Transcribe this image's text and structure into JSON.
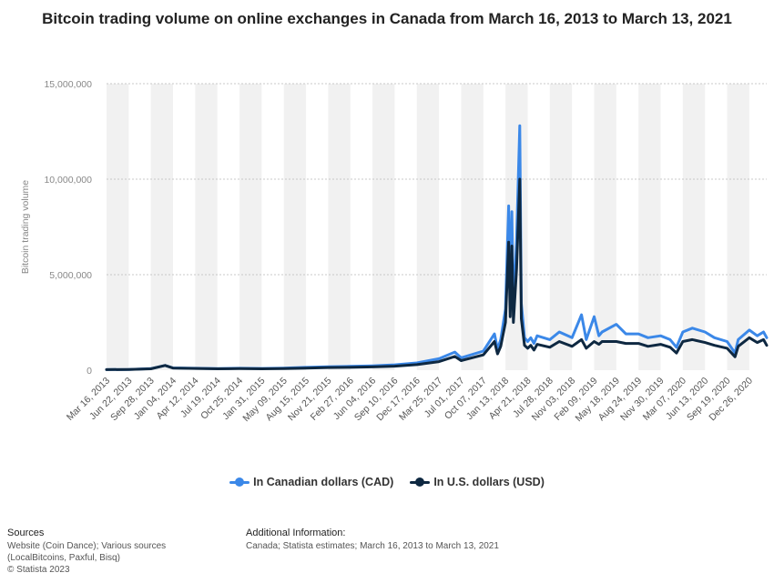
{
  "chart_data": {
    "type": "line",
    "title": "Bitcoin trading volume on online exchanges in Canada from March 16, 2013 to March 13, 2021",
    "xlabel": "",
    "ylabel": "Bitcoin trading volume",
    "ylim": [
      0,
      15000000
    ],
    "yticks": [
      "0",
      "5,000,000",
      "10,000,000",
      "15,000,000"
    ],
    "ytick_values": [
      0,
      5000000,
      10000000,
      15000000
    ],
    "grid": true,
    "legend_position": "bottom",
    "xticks": [
      "Mar 16, 2013",
      "Jun 22, 2013",
      "Sep 28, 2013",
      "Jan 04, 2014",
      "Apr 12, 2014",
      "Jul 19, 2014",
      "Oct 25, 2014",
      "Jan 31, 2015",
      "May 09, 2015",
      "Aug 15, 2015",
      "Nov 21, 2015",
      "Feb 27, 2016",
      "Jun 04, 2016",
      "Sep 10, 2016",
      "Dec 17, 2016",
      "Mar 25, 2017",
      "Jul 01, 2017",
      "Oct 07, 2017",
      "Jan 13, 2018",
      "Apr 21, 2018",
      "Jul 28, 2018",
      "Nov 03, 2018",
      "Feb 09, 2019",
      "May 18, 2019",
      "Aug 24, 2019",
      "Nov 30, 2019",
      "Mar 07, 2020",
      "Jun 13, 2020",
      "Sep 19, 2020",
      "Dec 26, 2020"
    ],
    "x": [
      "Mar 16, 2013",
      "Jun 22, 2013",
      "Sep 28, 2013",
      "Nov 30, 2013",
      "Jan 04, 2014",
      "Apr 12, 2014",
      "Jul 19, 2014",
      "Oct 25, 2014",
      "Jan 31, 2015",
      "May 09, 2015",
      "Aug 15, 2015",
      "Nov 21, 2015",
      "Feb 27, 2016",
      "Jun 04, 2016",
      "Sep 10, 2016",
      "Dec 17, 2016",
      "Mar 25, 2017",
      "Jun 03, 2017",
      "Jul 01, 2017",
      "Oct 07, 2017",
      "Nov 25, 2017",
      "Dec 09, 2017",
      "Dec 23, 2017",
      "Jan 13, 2018",
      "Jan 27, 2018",
      "Feb 03, 2018",
      "Feb 10, 2018",
      "Feb 17, 2018",
      "Mar 03, 2018",
      "Mar 17, 2018",
      "Mar 24, 2018",
      "Apr 07, 2018",
      "Apr 21, 2018",
      "May 05, 2018",
      "May 19, 2018",
      "Jun 02, 2018",
      "Jul 28, 2018",
      "Sep 08, 2018",
      "Nov 03, 2018",
      "Dec 15, 2018",
      "Jan 05, 2019",
      "Feb 09, 2019",
      "Mar 02, 2019",
      "Mar 16, 2019",
      "May 18, 2019",
      "Jun 29, 2019",
      "Aug 24, 2019",
      "Oct 05, 2019",
      "Nov 30, 2019",
      "Jan 11, 2020",
      "Feb 08, 2020",
      "Mar 07, 2020",
      "Apr 18, 2020",
      "Jun 13, 2020",
      "Jul 25, 2020",
      "Sep 19, 2020",
      "Oct 24, 2020",
      "Nov 07, 2020",
      "Dec 26, 2020",
      "Jan 30, 2021",
      "Feb 27, 2021",
      "Mar 13, 2021"
    ],
    "series": [
      {
        "name": "In Canadian dollars (CAD)",
        "color": "#3b88e8",
        "values": [
          30000,
          40000,
          80000,
          250000,
          120000,
          100000,
          80000,
          100000,
          90000,
          110000,
          150000,
          180000,
          200000,
          230000,
          280000,
          380000,
          600000,
          950000,
          650000,
          1000000,
          1900000,
          1100000,
          1600000,
          3200000,
          8600000,
          3600000,
          8300000,
          3200000,
          6800000,
          12800000,
          3500000,
          1700000,
          1500000,
          1700000,
          1400000,
          1800000,
          1600000,
          2000000,
          1700000,
          2900000,
          1600000,
          2800000,
          1800000,
          2000000,
          2400000,
          1900000,
          1900000,
          1700000,
          1800000,
          1600000,
          1200000,
          2000000,
          2200000,
          2000000,
          1700000,
          1500000,
          900000,
          1600000,
          2100000,
          1800000,
          2000000,
          1700000
        ]
      },
      {
        "name": "In U.S. dollars (USD)",
        "color": "#0e2841",
        "values": [
          30000,
          40000,
          70000,
          250000,
          110000,
          90000,
          70000,
          80000,
          70000,
          85000,
          110000,
          140000,
          150000,
          170000,
          210000,
          290000,
          450000,
          720000,
          500000,
          800000,
          1500000,
          850000,
          1250000,
          2500000,
          6700000,
          2800000,
          6500000,
          2500000,
          5300000,
          10000000,
          2700000,
          1300000,
          1150000,
          1300000,
          1050000,
          1350000,
          1200000,
          1500000,
          1250000,
          1600000,
          1150000,
          1500000,
          1350000,
          1500000,
          1500000,
          1400000,
          1400000,
          1250000,
          1350000,
          1200000,
          900000,
          1500000,
          1600000,
          1450000,
          1300000,
          1150000,
          700000,
          1250000,
          1700000,
          1450000,
          1600000,
          1300000
        ]
      }
    ]
  },
  "legend": {
    "items": [
      {
        "label": "In Canadian dollars (CAD)",
        "color": "#3b88e8"
      },
      {
        "label": "In U.S. dollars (USD)",
        "color": "#0e2841"
      }
    ]
  },
  "footer": {
    "sources_heading": "Sources",
    "sources_line1": "Website (Coin Dance); Various sources",
    "sources_line2": "(LocalBitcoins, Paxful, Bisq)",
    "copyright": "© Statista 2023",
    "additional_heading": "Additional Information:",
    "additional_text": "Canada; Statista estimates; March 16, 2013 to March 13, 2021"
  }
}
